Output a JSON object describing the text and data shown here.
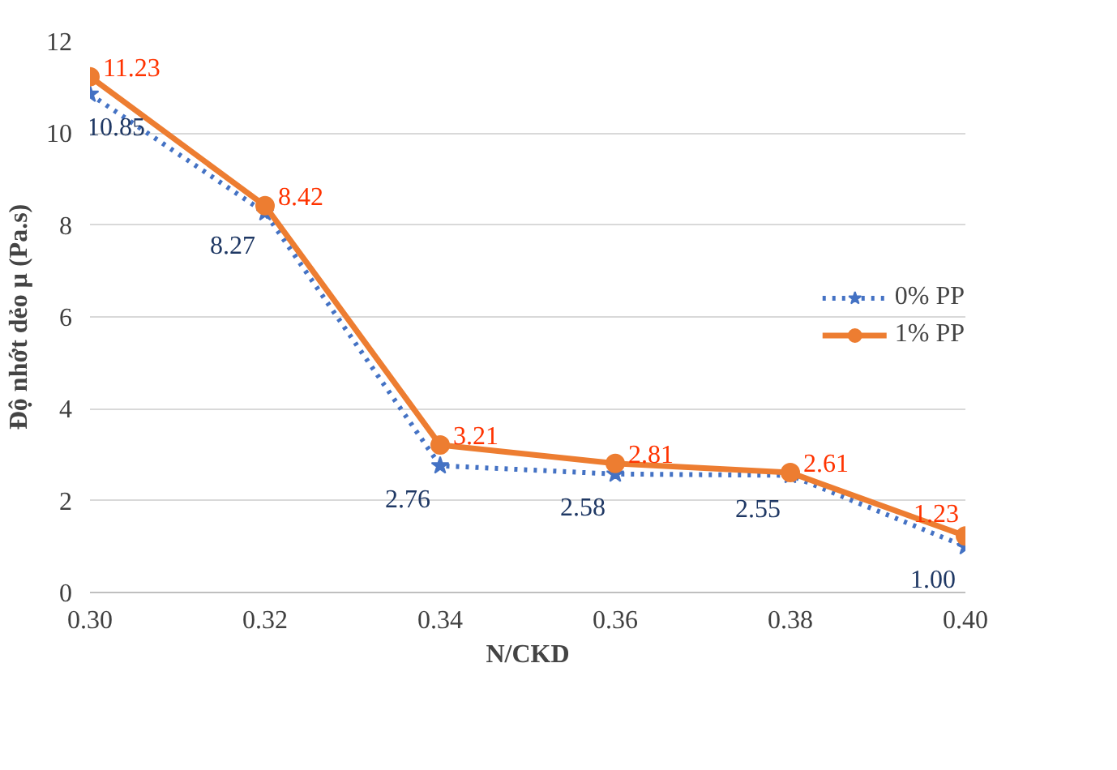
{
  "chart_data": {
    "type": "line",
    "xlabel": "N/CKD",
    "ylabel": "Độ nhớt dẻo μ (Pa.s)",
    "x": [
      0.3,
      0.32,
      0.34,
      0.36,
      0.38,
      0.4
    ],
    "xlim": [
      0.3,
      0.4
    ],
    "xticks": [
      {
        "value": 0.3,
        "label": "0.30"
      },
      {
        "value": 0.32,
        "label": "0.32"
      },
      {
        "value": 0.34,
        "label": "0.34"
      },
      {
        "value": 0.36,
        "label": "0.36"
      },
      {
        "value": 0.38,
        "label": "0.38"
      },
      {
        "value": 0.4,
        "label": "0.40"
      }
    ],
    "ylim": [
      0,
      12
    ],
    "yticks": [
      0,
      2,
      4,
      6,
      8,
      10,
      12
    ],
    "grid": "y",
    "legend": "right",
    "series": [
      {
        "name": "0% PP",
        "color": "#4472c4",
        "marker": "star",
        "line_style": "dotted",
        "values": [
          10.85,
          8.27,
          2.76,
          2.58,
          2.55,
          1.0
        ],
        "value_labels": [
          "10.85",
          "8.27",
          "2.76",
          "2.58",
          "2.55",
          "1.00"
        ]
      },
      {
        "name": "1% PP",
        "color": "#ed7d31",
        "marker": "circle",
        "line_style": "solid",
        "values": [
          11.23,
          8.42,
          3.21,
          2.81,
          2.61,
          1.23
        ],
        "value_labels": [
          "11.23",
          "8.42",
          "3.21",
          "2.81",
          "2.61",
          "1.23"
        ]
      }
    ]
  }
}
